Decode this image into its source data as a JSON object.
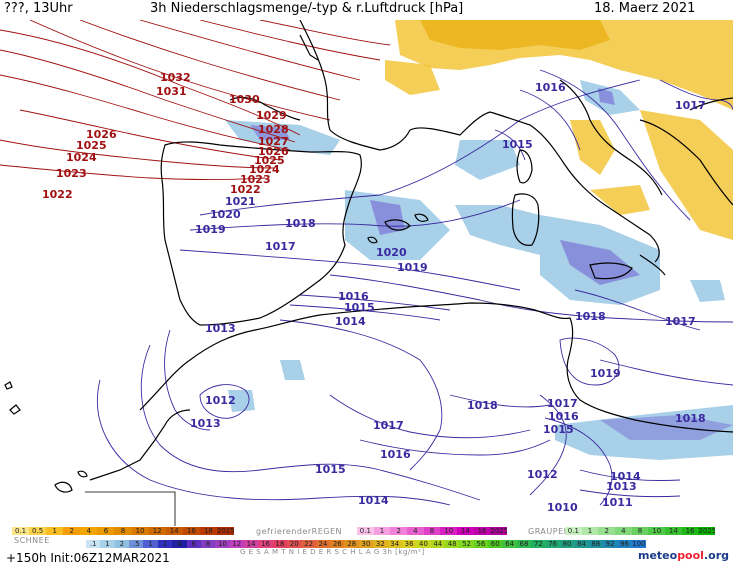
{
  "header": {
    "left": "???, 13Uhr",
    "title": "3h Niederschlagsmenge/-typ & r.Luftdruck [hPa]",
    "date": "18. Maerz 2021"
  },
  "colors": {
    "isobar_high": "#a01010",
    "isobar_low": "#3a2aa0",
    "coast": "#000000",
    "snow": "#f0b800",
    "rain_light": "#a8d0e8",
    "rain_mid": "#8080d8"
  },
  "isobar_labels": [
    {
      "text": "1032",
      "c": "high"
    },
    {
      "text": "1031",
      "c": "high"
    },
    {
      "text": "1030",
      "c": "high"
    },
    {
      "text": "1029",
      "c": "high"
    },
    {
      "text": "1028",
      "c": "high"
    },
    {
      "text": "1027",
      "c": "high"
    },
    {
      "text": "1026",
      "c": "high"
    },
    {
      "text": "1025",
      "c": "high"
    },
    {
      "text": "1024",
      "c": "high"
    },
    {
      "text": "1023",
      "c": "high"
    },
    {
      "text": "1022",
      "c": "high"
    },
    {
      "text": "1021",
      "c": "low"
    },
    {
      "text": "1026",
      "c": "high"
    },
    {
      "text": "1025",
      "c": "high"
    },
    {
      "text": "1024",
      "c": "high"
    },
    {
      "text": "1023",
      "c": "high"
    },
    {
      "text": "1022",
      "c": "high"
    },
    {
      "text": "1020",
      "c": "low"
    },
    {
      "text": "1019",
      "c": "low"
    },
    {
      "text": "1018",
      "c": "low"
    },
    {
      "text": "1017",
      "c": "low"
    },
    {
      "text": "1016",
      "c": "low"
    },
    {
      "text": "1015",
      "c": "low"
    },
    {
      "text": "1014",
      "c": "low"
    },
    {
      "text": "1013",
      "c": "low"
    },
    {
      "text": "1012",
      "c": "low"
    },
    {
      "text": "1013",
      "c": "low"
    },
    {
      "text": "1020",
      "c": "low"
    },
    {
      "text": "1019",
      "c": "low"
    },
    {
      "text": "1017",
      "c": "low"
    },
    {
      "text": "1016",
      "c": "low"
    },
    {
      "text": "1015",
      "c": "low"
    },
    {
      "text": "1014",
      "c": "low"
    },
    {
      "text": "1018",
      "c": "low"
    },
    {
      "text": "1017",
      "c": "low"
    },
    {
      "text": "1016",
      "c": "low"
    },
    {
      "text": "1015",
      "c": "low"
    },
    {
      "text": "1012",
      "c": "low"
    },
    {
      "text": "1014",
      "c": "low"
    },
    {
      "text": "1013",
      "c": "low"
    },
    {
      "text": "1011",
      "c": "low"
    },
    {
      "text": "1010",
      "c": "low"
    },
    {
      "text": "1018",
      "c": "low"
    },
    {
      "text": "1017",
      "c": "low"
    },
    {
      "text": "1019",
      "c": "low"
    },
    {
      "text": "1018",
      "c": "low"
    },
    {
      "text": "1016",
      "c": "low"
    },
    {
      "text": "1015",
      "c": "low"
    },
    {
      "text": "1017",
      "c": "low"
    }
  ],
  "legend": {
    "snow_label": "SCHNEE",
    "snow_scale": [
      "0.1",
      "0.5",
      "1",
      "2",
      "4",
      "6",
      "8",
      "10",
      "12",
      "14",
      "16",
      "18",
      "2025+"
    ],
    "frz_label": "gefrierenderREGEN",
    "frz_scale": [
      "0.1",
      "1",
      "2",
      "4",
      "8",
      "10",
      "14",
      "16",
      "2025+"
    ],
    "graupel_label": "GRAUPEL",
    "graupel_scale": [
      "0.1",
      "1",
      "2",
      "4",
      "8",
      "10",
      "14",
      "16",
      "2025+"
    ],
    "total_label": "G E S A M T N I E D E R S C H L A G   3h   [kg/m²]",
    "total_scale": [
      ".1",
      "1",
      "2",
      ".5",
      "1",
      "2",
      "4",
      "6",
      "8",
      "10",
      "12",
      "14",
      "16",
      "18",
      "20",
      "22",
      "24",
      "26",
      "28",
      "30",
      "32",
      "34",
      "36",
      "40",
      "44",
      "48",
      "52",
      "56",
      "60",
      "64",
      "68",
      "72",
      "76",
      "80",
      "84",
      "88",
      "92",
      "96",
      "100"
    ]
  },
  "footer": {
    "run": "+150h  Init:06Z12MAR2021",
    "brand_a": "meteo",
    "brand_b": "pool",
    "brand_c": ".org"
  }
}
